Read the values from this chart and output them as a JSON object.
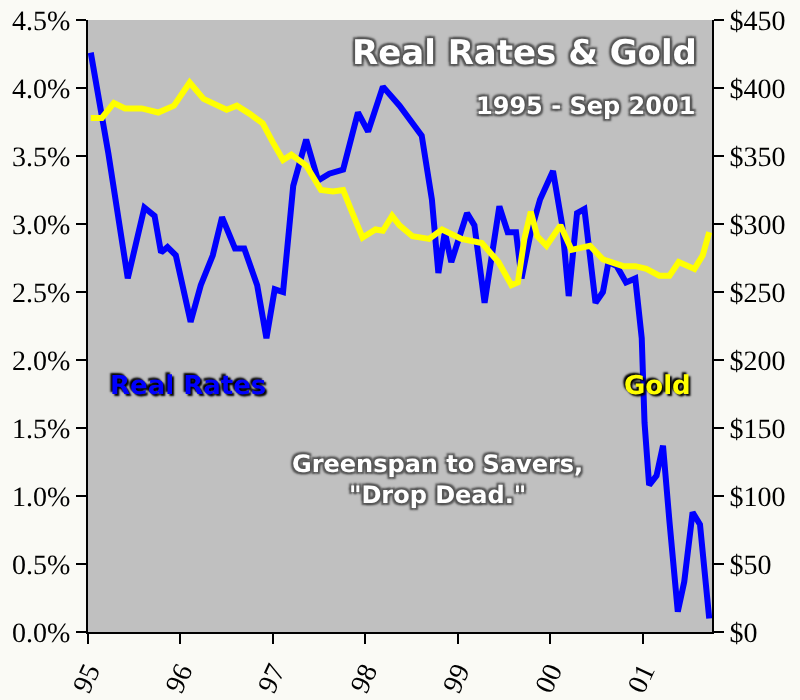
{
  "chart_data": {
    "type": "line",
    "title": "Real Rates & Gold",
    "subtitle": "1995 - Sep 2001",
    "annotations": [
      "Greenspan to Savers,\n\"Drop Dead.\""
    ],
    "xlim": [
      1995,
      2001.75
    ],
    "xticks": [
      {
        "value": 1995,
        "label": "95"
      },
      {
        "value": 1996,
        "label": "96"
      },
      {
        "value": 1997,
        "label": "97"
      },
      {
        "value": 1998,
        "label": "98"
      },
      {
        "value": 1999,
        "label": "99"
      },
      {
        "value": 2000,
        "label": "00"
      },
      {
        "value": 2001,
        "label": "01"
      }
    ],
    "ylim": [
      0,
      4.5
    ],
    "yticks": [
      {
        "value": 0,
        "label": "0.0%"
      },
      {
        "value": 0.5,
        "label": "0.5%"
      },
      {
        "value": 1,
        "label": "1.0%"
      },
      {
        "value": 1.5,
        "label": "1.5%"
      },
      {
        "value": 2,
        "label": "2.0%"
      },
      {
        "value": 2.5,
        "label": "2.5%"
      },
      {
        "value": 3,
        "label": "3.0%"
      },
      {
        "value": 3.5,
        "label": "3.5%"
      },
      {
        "value": 4,
        "label": "4.0%"
      },
      {
        "value": 4.5,
        "label": "4.5%"
      }
    ],
    "y2lim": [
      0,
      450
    ],
    "y2ticks": [
      {
        "value": 0,
        "label": "$0"
      },
      {
        "value": 50,
        "label": "$50"
      },
      {
        "value": 100,
        "label": "$100"
      },
      {
        "value": 150,
        "label": "$150"
      },
      {
        "value": 200,
        "label": "$200"
      },
      {
        "value": 250,
        "label": "$250"
      },
      {
        "value": 300,
        "label": "$300"
      },
      {
        "value": 350,
        "label": "$350"
      },
      {
        "value": 400,
        "label": "$400"
      },
      {
        "value": 450,
        "label": "$450"
      }
    ],
    "grid": false,
    "legend": false,
    "marker": "none",
    "line_style": "solid",
    "series": [
      {
        "name": "Real Rates",
        "color": "#0000ff",
        "x": [
          1995.03,
          1995.22,
          1995.43,
          1995.61,
          1995.72,
          1995.79,
          1995.86,
          1995.95,
          1996.11,
          1996.22,
          1996.35,
          1996.45,
          1996.59,
          1996.69,
          1996.83,
          1996.93,
          1997.02,
          1997.11,
          1997.22,
          1997.36,
          1997.49,
          1997.61,
          1997.76,
          1997.92,
          1998.03,
          1998.19,
          1998.37,
          1998.61,
          1998.72,
          1998.79,
          1998.86,
          1998.93,
          1999.1,
          1999.18,
          1999.29,
          1999.45,
          1999.54,
          1999.63,
          1999.69,
          1999.79,
          1999.89,
          2000.03,
          2000.13,
          2000.2,
          2000.29,
          2000.37,
          2000.49,
          2000.57,
          2000.63,
          2000.72,
          2000.82,
          2000.92,
          2000.99,
          2001.02,
          2001.07,
          2001.15,
          2001.22,
          2001.29,
          2001.38,
          2001.45,
          2001.54,
          2001.62,
          2001.72
        ],
        "values": [
          4.26,
          3.52,
          2.6,
          3.12,
          3.06,
          2.79,
          2.83,
          2.77,
          2.28,
          2.55,
          2.77,
          3.05,
          2.82,
          2.82,
          2.55,
          2.16,
          2.52,
          2.5,
          3.28,
          3.62,
          3.32,
          3.37,
          3.4,
          3.82,
          3.68,
          4.01,
          3.87,
          3.65,
          3.18,
          2.64,
          2.94,
          2.72,
          3.08,
          2.99,
          2.42,
          3.13,
          2.94,
          2.94,
          2.6,
          2.94,
          3.18,
          3.39,
          2.99,
          2.47,
          3.08,
          3.11,
          2.42,
          2.5,
          2.72,
          2.69,
          2.57,
          2.6,
          2.16,
          1.54,
          1.08,
          1.15,
          1.37,
          0.81,
          0.15,
          0.37,
          0.88,
          0.79,
          0.1
        ]
      },
      {
        "name": "Gold",
        "color": "#ffff00",
        "axis": "y2",
        "x": [
          1995.03,
          1995.15,
          1995.28,
          1995.4,
          1995.58,
          1995.76,
          1995.93,
          1996.1,
          1996.25,
          1996.5,
          1996.61,
          1996.75,
          1996.89,
          1997.0,
          1997.11,
          1997.2,
          1997.36,
          1997.52,
          1997.65,
          1997.76,
          1997.86,
          1997.97,
          1998.11,
          1998.19,
          1998.29,
          1998.37,
          1998.51,
          1998.69,
          1998.83,
          1999.04,
          1999.26,
          1999.44,
          1999.58,
          1999.65,
          1999.72,
          1999.79,
          1999.86,
          1999.96,
          2000.11,
          2000.23,
          2000.43,
          2000.57,
          2000.79,
          2000.92,
          2001.04,
          2001.18,
          2001.29,
          2001.39,
          2001.56,
          2001.65,
          2001.72
        ],
        "values": [
          378,
          378,
          389,
          385,
          385,
          382,
          387,
          404,
          392,
          384,
          387,
          381,
          374,
          360,
          347,
          351,
          343,
          325,
          324,
          325,
          308,
          290,
          296,
          295,
          306,
          299,
          291,
          289,
          296,
          289,
          286,
          272,
          255,
          257,
          289,
          309,
          291,
          284,
          299,
          281,
          284,
          274,
          269,
          269,
          267,
          262,
          262,
          272,
          267,
          277,
          294
        ]
      }
    ]
  }
}
